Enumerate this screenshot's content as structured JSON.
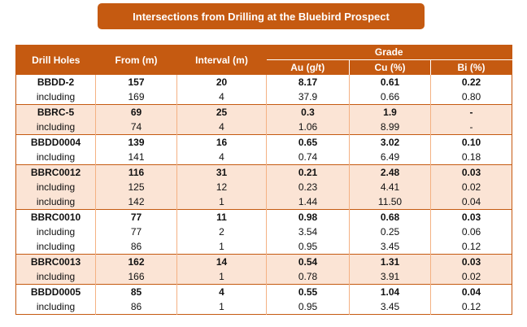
{
  "title": "Intersections from Drilling at the Bluebird Prospect",
  "headers": {
    "drill_holes": "Drill Holes",
    "from": "From (m)",
    "interval": "Interval (m)",
    "grade": "Grade",
    "au": "Au (g/t)",
    "cu": "Cu (%)",
    "bi": "Bi (%)"
  },
  "groups": [
    {
      "shade": "white",
      "rows": [
        {
          "hole": "BBDD-2",
          "from": "157",
          "interval": "20",
          "au": "8.17",
          "cu": "0.61",
          "bi": "0.22"
        },
        {
          "hole": "including",
          "from": "169",
          "interval": "4",
          "au": "37.9",
          "cu": "0.66",
          "bi": "0.80"
        }
      ]
    },
    {
      "shade": "shaded",
      "rows": [
        {
          "hole": "BBRC-5",
          "from": "69",
          "interval": "25",
          "au": "0.3",
          "cu": "1.9",
          "bi": "-"
        },
        {
          "hole": "including",
          "from": "74",
          "interval": "4",
          "au": "1.06",
          "cu": "8.99",
          "bi": "-"
        }
      ]
    },
    {
      "shade": "white",
      "rows": [
        {
          "hole": "BBDD0004",
          "from": "139",
          "interval": "16",
          "au": "0.65",
          "cu": "3.02",
          "bi": "0.10"
        },
        {
          "hole": "including",
          "from": "141",
          "interval": "4",
          "au": "0.74",
          "cu": "6.49",
          "bi": "0.18"
        }
      ]
    },
    {
      "shade": "shaded",
      "rows": [
        {
          "hole": "BBRC0012",
          "from": "116",
          "interval": "31",
          "au": "0.21",
          "cu": "2.48",
          "bi": "0.03"
        },
        {
          "hole": "including",
          "from": "125",
          "interval": "12",
          "au": "0.23",
          "cu": "4.41",
          "bi": "0.02"
        },
        {
          "hole": "including",
          "from": "142",
          "interval": "1",
          "au": "1.44",
          "cu": "11.50",
          "bi": "0.04"
        }
      ]
    },
    {
      "shade": "white",
      "rows": [
        {
          "hole": "BBRC0010",
          "from": "77",
          "interval": "11",
          "au": "0.98",
          "cu": "0.68",
          "bi": "0.03"
        },
        {
          "hole": "including",
          "from": "77",
          "interval": "2",
          "au": "3.54",
          "cu": "0.25",
          "bi": "0.06"
        },
        {
          "hole": "including",
          "from": "86",
          "interval": "1",
          "au": "0.95",
          "cu": "3.45",
          "bi": "0.12"
        }
      ]
    },
    {
      "shade": "shaded",
      "rows": [
        {
          "hole": "BBRC0013",
          "from": "162",
          "interval": "14",
          "au": "0.54",
          "cu": "1.31",
          "bi": "0.03"
        },
        {
          "hole": "including",
          "from": "166",
          "interval": "1",
          "au": "0.78",
          "cu": "3.91",
          "bi": "0.02"
        }
      ]
    },
    {
      "shade": "white",
      "rows": [
        {
          "hole": "BBDD0005",
          "from": "85",
          "interval": "4",
          "au": "0.55",
          "cu": "1.04",
          "bi": "0.04"
        },
        {
          "hole": "including",
          "from": "86",
          "interval": "1",
          "au": "0.95",
          "cu": "3.45",
          "bi": "0.12"
        }
      ]
    }
  ]
}
